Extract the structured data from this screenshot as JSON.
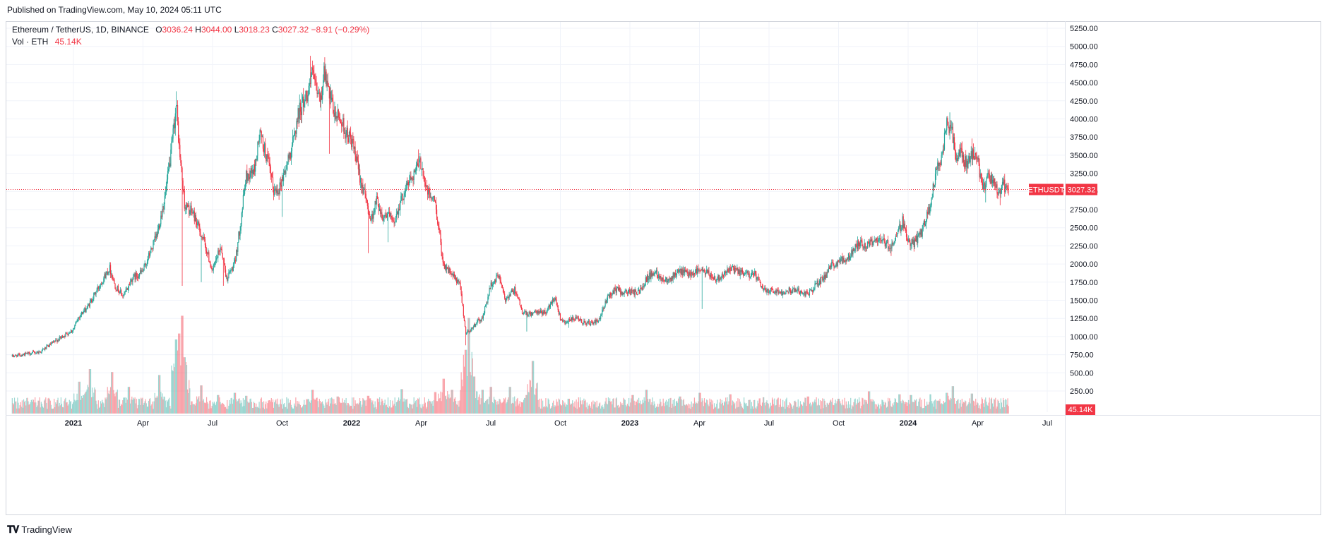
{
  "published": "Published on TradingView.com, May 10, 2024 05:11 UTC",
  "legend": {
    "symbol_line": "Ethereum / TetherUS, 1D, BINANCE",
    "open_label": "O",
    "open": "3036.24",
    "high_label": "H",
    "high": "3044.00",
    "low_label": "L",
    "low": "3018.23",
    "close_label": "C",
    "close": "3027.32",
    "change": "−8.91 (−0.29%)",
    "vol_label": "Vol · ETH",
    "vol_value": "45.14K"
  },
  "price_badge": {
    "symbol": "ETHUSDT",
    "value": "3027.32"
  },
  "volume_badge": "45.14K",
  "footer_brand": "TradingView",
  "colors": {
    "up": "#26a69a",
    "down": "#f23645",
    "grid": "#f0f3fa",
    "axis_text": "#131722"
  },
  "chart_data": {
    "type": "candlestick",
    "title": "Ethereum / TetherUS, 1D, BINANCE",
    "ylim": [
      0,
      5400
    ],
    "y_ticks": [
      "250.00",
      "500.00",
      "750.00",
      "1000.00",
      "1250.00",
      "1500.00",
      "1750.00",
      "2000.00",
      "2250.00",
      "2500.00",
      "2750.00",
      "3000.00",
      "3250.00",
      "3500.00",
      "3750.00",
      "4000.00",
      "4250.00",
      "4500.00",
      "4750.00",
      "5000.00",
      "5250.00"
    ],
    "x_ticks": [
      {
        "label": "2021",
        "t": 0.0
      },
      {
        "label": "Apr",
        "t": 0.25
      },
      {
        "label": "Jul",
        "t": 0.5
      },
      {
        "label": "Oct",
        "t": 0.75
      },
      {
        "label": "2022",
        "t": 1.0
      },
      {
        "label": "Apr",
        "t": 1.25
      },
      {
        "label": "Jul",
        "t": 1.5
      },
      {
        "label": "Oct",
        "t": 1.75
      },
      {
        "label": "2023",
        "t": 2.0
      },
      {
        "label": "Apr",
        "t": 2.25
      },
      {
        "label": "Jul",
        "t": 2.5
      },
      {
        "label": "Oct",
        "t": 2.75
      },
      {
        "label": "2024",
        "t": 3.0
      },
      {
        "label": "Apr",
        "t": 3.25
      },
      {
        "label": "Jul",
        "t": 3.5
      }
    ],
    "x_range": [
      -0.22,
      3.52
    ],
    "last_price": 3027.32,
    "last_t": 3.36,
    "price_path": [
      [
        -0.22,
        730
      ],
      [
        -0.12,
        790
      ],
      [
        -0.04,
        1000
      ],
      [
        0.0,
        1100
      ],
      [
        0.02,
        1280
      ],
      [
        0.05,
        1400
      ],
      [
        0.1,
        1750
      ],
      [
        0.13,
        1950
      ],
      [
        0.15,
        1700
      ],
      [
        0.18,
        1550
      ],
      [
        0.21,
        1800
      ],
      [
        0.25,
        1900
      ],
      [
        0.28,
        2200
      ],
      [
        0.3,
        2400
      ],
      [
        0.33,
        2950
      ],
      [
        0.35,
        3500
      ],
      [
        0.37,
        4200
      ],
      [
        0.38,
        3600
      ],
      [
        0.4,
        2800
      ],
      [
        0.43,
        2700
      ],
      [
        0.47,
        2300
      ],
      [
        0.5,
        1900
      ],
      [
        0.53,
        2250
      ],
      [
        0.55,
        1800
      ],
      [
        0.58,
        2000
      ],
      [
        0.6,
        2550
      ],
      [
        0.62,
        3200
      ],
      [
        0.65,
        3300
      ],
      [
        0.67,
        3800
      ],
      [
        0.7,
        3400
      ],
      [
        0.72,
        3000
      ],
      [
        0.74,
        3050
      ],
      [
        0.77,
        3400
      ],
      [
        0.79,
        3700
      ],
      [
        0.81,
        4100
      ],
      [
        0.84,
        4350
      ],
      [
        0.86,
        4650
      ],
      [
        0.87,
        4400
      ],
      [
        0.89,
        4250
      ],
      [
        0.9,
        4700
      ],
      [
        0.92,
        4300
      ],
      [
        0.94,
        4050
      ],
      [
        0.96,
        4000
      ],
      [
        0.98,
        3800
      ],
      [
        1.0,
        3700
      ],
      [
        1.03,
        3200
      ],
      [
        1.05,
        2900
      ],
      [
        1.07,
        2600
      ],
      [
        1.09,
        2900
      ],
      [
        1.11,
        2650
      ],
      [
        1.13,
        2700
      ],
      [
        1.15,
        2550
      ],
      [
        1.17,
        2800
      ],
      [
        1.2,
        3100
      ],
      [
        1.23,
        3300
      ],
      [
        1.25,
        3400
      ],
      [
        1.27,
        3000
      ],
      [
        1.3,
        2850
      ],
      [
        1.33,
        2000
      ],
      [
        1.35,
        1900
      ],
      [
        1.37,
        1800
      ],
      [
        1.39,
        1700
      ],
      [
        1.41,
        1050
      ],
      [
        1.43,
        1100
      ],
      [
        1.45,
        1200
      ],
      [
        1.47,
        1250
      ],
      [
        1.5,
        1700
      ],
      [
        1.53,
        1850
      ],
      [
        1.55,
        1500
      ],
      [
        1.57,
        1600
      ],
      [
        1.59,
        1650
      ],
      [
        1.61,
        1350
      ],
      [
        1.63,
        1300
      ],
      [
        1.65,
        1320
      ],
      [
        1.67,
        1330
      ],
      [
        1.7,
        1340
      ],
      [
        1.73,
        1560
      ],
      [
        1.75,
        1250
      ],
      [
        1.77,
        1200
      ],
      [
        1.8,
        1250
      ],
      [
        1.83,
        1200
      ],
      [
        1.86,
        1180
      ],
      [
        1.89,
        1220
      ],
      [
        1.92,
        1550
      ],
      [
        1.95,
        1650
      ],
      [
        1.98,
        1600
      ],
      [
        2.0,
        1620
      ],
      [
        2.03,
        1600
      ],
      [
        2.06,
        1800
      ],
      [
        2.09,
        1900
      ],
      [
        2.12,
        1780
      ],
      [
        2.15,
        1820
      ],
      [
        2.18,
        1900
      ],
      [
        2.21,
        1860
      ],
      [
        2.25,
        1920
      ],
      [
        2.28,
        1870
      ],
      [
        2.31,
        1790
      ],
      [
        2.34,
        1880
      ],
      [
        2.37,
        1930
      ],
      [
        2.4,
        1870
      ],
      [
        2.43,
        1860
      ],
      [
        2.45,
        1850
      ],
      [
        2.48,
        1640
      ],
      [
        2.51,
        1650
      ],
      [
        2.54,
        1610
      ],
      [
        2.57,
        1640
      ],
      [
        2.6,
        1640
      ],
      [
        2.64,
        1580
      ],
      [
        2.67,
        1720
      ],
      [
        2.7,
        1820
      ],
      [
        2.73,
        2000
      ],
      [
        2.76,
        2050
      ],
      [
        2.79,
        2100
      ],
      [
        2.82,
        2300
      ],
      [
        2.85,
        2250
      ],
      [
        2.88,
        2350
      ],
      [
        2.91,
        2300
      ],
      [
        2.94,
        2250
      ],
      [
        2.96,
        2400
      ],
      [
        2.98,
        2600
      ],
      [
        3.0,
        2300
      ],
      [
        3.02,
        2280
      ],
      [
        3.05,
        2450
      ],
      [
        3.08,
        2800
      ],
      [
        3.1,
        3300
      ],
      [
        3.12,
        3450
      ],
      [
        3.14,
        3950
      ],
      [
        3.16,
        3800
      ],
      [
        3.17,
        3450
      ],
      [
        3.19,
        3550
      ],
      [
        3.21,
        3350
      ],
      [
        3.23,
        3500
      ],
      [
        3.25,
        3400
      ],
      [
        3.27,
        3050
      ],
      [
        3.29,
        3200
      ],
      [
        3.31,
        3100
      ],
      [
        3.33,
        2950
      ],
      [
        3.34,
        3100
      ],
      [
        3.36,
        3027
      ]
    ],
    "spikes": [
      [
        0.37,
        4380
      ],
      [
        0.36,
        4000
      ],
      [
        0.39,
        1700
      ],
      [
        0.46,
        1750
      ],
      [
        0.54,
        1700
      ],
      [
        0.75,
        2650
      ],
      [
        0.85,
        4870
      ],
      [
        0.9,
        4780
      ],
      [
        0.92,
        3520
      ],
      [
        1.06,
        2150
      ],
      [
        1.13,
        2300
      ],
      [
        1.24,
        3580
      ],
      [
        1.41,
        880
      ],
      [
        1.63,
        1070
      ],
      [
        1.78,
        1120
      ],
      [
        2.26,
        1380
      ],
      [
        2.94,
        2110
      ],
      [
        3.15,
        4090
      ],
      [
        3.23,
        3730
      ],
      [
        3.28,
        2850
      ],
      [
        3.33,
        2810
      ]
    ],
    "volume_spikes": [
      [
        0.02,
        430
      ],
      [
        0.06,
        600
      ],
      [
        0.14,
        560
      ],
      [
        0.2,
        360
      ],
      [
        0.31,
        520
      ],
      [
        0.37,
        1000
      ],
      [
        0.38,
        1080
      ],
      [
        0.39,
        1320
      ],
      [
        0.4,
        760
      ],
      [
        0.46,
        380
      ],
      [
        0.52,
        250
      ],
      [
        0.58,
        280
      ],
      [
        0.62,
        240
      ],
      [
        0.86,
        320
      ],
      [
        0.95,
        230
      ],
      [
        1.06,
        240
      ],
      [
        1.18,
        330
      ],
      [
        1.3,
        290
      ],
      [
        1.33,
        470
      ],
      [
        1.36,
        320
      ],
      [
        1.41,
        860
      ],
      [
        1.42,
        1290
      ],
      [
        1.44,
        500
      ],
      [
        1.47,
        320
      ],
      [
        1.5,
        360
      ],
      [
        1.57,
        360
      ],
      [
        1.63,
        250
      ],
      [
        1.65,
        710
      ],
      [
        1.78,
        200
      ],
      [
        2.01,
        250
      ],
      [
        2.06,
        320
      ],
      [
        2.18,
        230
      ],
      [
        2.25,
        280
      ],
      [
        2.36,
        260
      ],
      [
        2.48,
        220
      ],
      [
        2.64,
        230
      ],
      [
        2.75,
        200
      ],
      [
        2.86,
        300
      ],
      [
        2.97,
        260
      ],
      [
        3.01,
        250
      ],
      [
        3.08,
        260
      ],
      [
        3.14,
        280
      ],
      [
        3.16,
        370
      ],
      [
        3.23,
        270
      ]
    ],
    "volume_axis_label": "Vol · ETH"
  }
}
